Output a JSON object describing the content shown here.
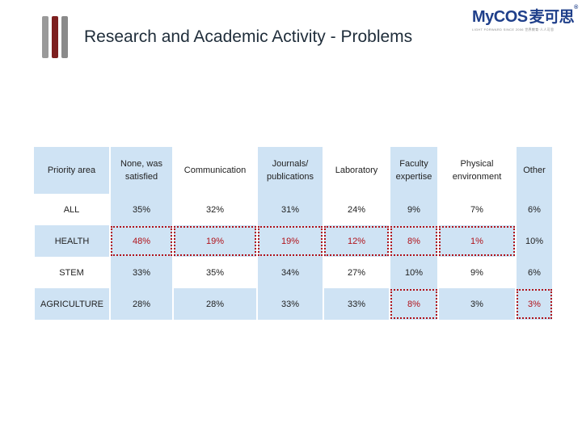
{
  "header": {
    "title": "Research and Academic Activity - Problems",
    "logo_text": "MyCOS",
    "logo_cn": "麦可思",
    "logo_reg": "®",
    "logo_subtitle": "LIGHT FORWARD SINCE 2006   世界教育·人人可思"
  },
  "table": {
    "columns": [
      "Priority area",
      "None, was satisfied",
      "Communication",
      "Journals/ publications",
      "Laboratory",
      "Faculty expertise",
      "Physical environment",
      "Other"
    ],
    "rows": [
      {
        "label": "ALL",
        "values": [
          "35%",
          "32%",
          "31%",
          "24%",
          "9%",
          "7%",
          "6%"
        ]
      },
      {
        "label": "HEALTH",
        "values": [
          "48%",
          "19%",
          "19%",
          "12%",
          "8%",
          "1%",
          "10%"
        ]
      },
      {
        "label": "STEM",
        "values": [
          "33%",
          "35%",
          "34%",
          "27%",
          "10%",
          "9%",
          "6%"
        ]
      },
      {
        "label": "AGRICULTURE",
        "values": [
          "28%",
          "28%",
          "33%",
          "33%",
          "8%",
          "3%",
          "3%"
        ]
      }
    ]
  },
  "highlight_color": "#b0121a",
  "shade_color": "#cfe3f4"
}
